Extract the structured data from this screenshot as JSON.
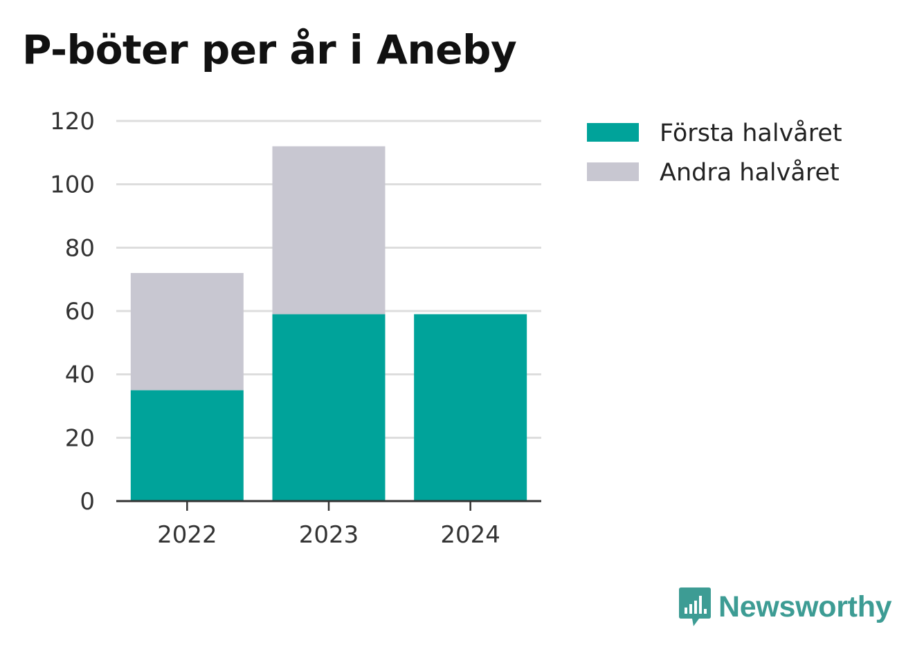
{
  "chart_data": {
    "type": "bar",
    "stacked": true,
    "title": "P-böter per år i Aneby",
    "xlabel": "",
    "ylabel": "",
    "categories": [
      "2022",
      "2023",
      "2024"
    ],
    "series": [
      {
        "name": "Första halvåret",
        "values": [
          35,
          59,
          59
        ],
        "color": "#00a39a"
      },
      {
        "name": "Andra halvåret",
        "values": [
          37,
          53,
          null
        ],
        "color": "#c8c7d1"
      }
    ],
    "ylim": [
      0,
      120
    ],
    "yticks": [
      0,
      20,
      40,
      60,
      80,
      100,
      120
    ],
    "grid": true,
    "legend_position": "top-right"
  },
  "brand": {
    "name": "Newsworthy",
    "logo_icon": "newsworthy-logo-icon",
    "color": "#3d9c94"
  }
}
